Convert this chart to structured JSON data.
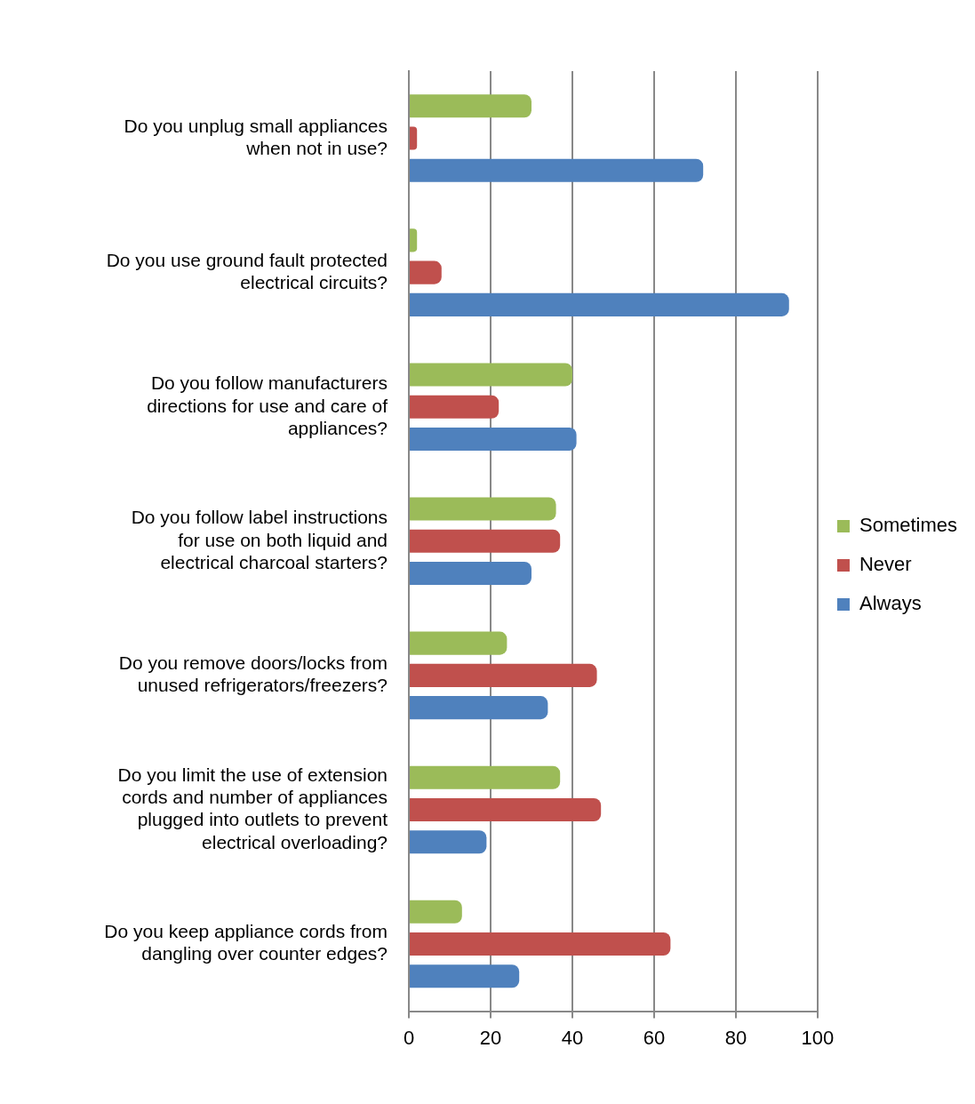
{
  "chart_data": {
    "type": "bar",
    "orientation": "horizontal",
    "categories": [
      "Do you unplug small appliances when not in use?",
      "Do you use ground fault protected electrical circuits?",
      "Do you follow manufacturers directions for use and care of appliances?",
      "Do you follow label instructions for use on both liquid and electrical charcoal starters?",
      "Do you remove doors/locks from unused refrigerators/freezers?",
      "Do you limit the use of extension cords and number of appliances plugged into outlets to prevent electrical overloading?",
      "Do you keep appliance cords from dangling over counter edges?"
    ],
    "series": [
      {
        "name": "Sometimes",
        "color": "#9bbb59",
        "values": [
          30,
          2,
          40,
          36,
          24,
          37,
          13
        ]
      },
      {
        "name": "Never",
        "color": "#c0504d",
        "values": [
          2,
          8,
          22,
          37,
          46,
          47,
          64
        ]
      },
      {
        "name": "Always",
        "color": "#4f81bd",
        "values": [
          72,
          93,
          41,
          30,
          34,
          19,
          27
        ]
      }
    ],
    "xlim": [
      0,
      100
    ],
    "xticks": [
      0,
      20,
      40,
      60,
      80,
      100
    ],
    "grid": "x",
    "legend": "right"
  }
}
